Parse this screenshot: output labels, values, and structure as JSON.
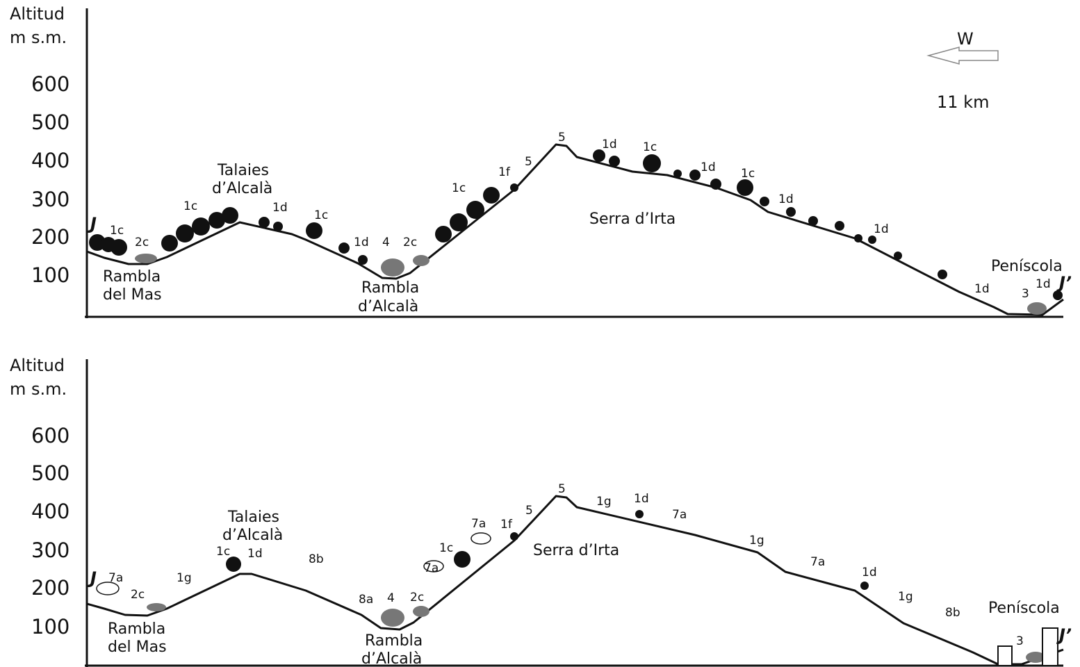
{
  "panels": [
    {
      "id": "top",
      "y_axis_title": [
        "Altitud",
        "m s.m."
      ],
      "y_ticks": [
        "600",
        "500",
        "400",
        "300",
        "200",
        "100"
      ],
      "direction_label": "W",
      "scale_label": "11 km",
      "endpoints": [
        "J",
        "J’"
      ],
      "place_names": [
        {
          "key": "rambla_mas",
          "lines": [
            "Rambla",
            "del Mas"
          ]
        },
        {
          "key": "talaies",
          "lines": [
            "Talaies",
            "d’Alcalà"
          ]
        },
        {
          "key": "rambla_alcala",
          "lines": [
            "Rambla",
            "d’Alcalà"
          ]
        },
        {
          "key": "serra",
          "lines": [
            "Serra d’Irta"
          ]
        },
        {
          "key": "peniscola",
          "lines": [
            "Peníscola"
          ]
        }
      ],
      "vegetation_codes": [
        "1c",
        "2c",
        "1c",
        "1d",
        "1c",
        "1d",
        "4",
        "2c",
        "1c",
        "1f",
        "5",
        "5",
        "1d",
        "1c",
        "1d",
        "1c",
        "1d",
        "1d",
        "1d",
        "3",
        "1d"
      ]
    },
    {
      "id": "bottom",
      "y_axis_title": [
        "Altitud",
        "m s.m."
      ],
      "y_ticks": [
        "600",
        "500",
        "400",
        "300",
        "200",
        "100"
      ],
      "endpoints": [
        "J",
        "J’"
      ],
      "place_names": [
        {
          "key": "rambla_mas",
          "lines": [
            "Rambla",
            "del Mas"
          ]
        },
        {
          "key": "talaies",
          "lines": [
            "Talaies",
            "d’Alcalà"
          ]
        },
        {
          "key": "rambla_alcala",
          "lines": [
            "Rambla",
            "d’Alcalà"
          ]
        },
        {
          "key": "serra",
          "lines": [
            "Serra d’Irta"
          ]
        },
        {
          "key": "peniscola",
          "lines": [
            "Peníscola"
          ]
        }
      ],
      "vegetation_codes": [
        "7a",
        "2c",
        "1g",
        "1c",
        "1d",
        "8b",
        "8a",
        "4",
        "2c",
        "7a",
        "1c",
        "7a",
        "1f",
        "5",
        "5",
        "1g",
        "1d",
        "7a",
        "1g",
        "7a",
        "1d",
        "1g",
        "8b",
        "3"
      ]
    }
  ],
  "colors": {
    "ink": "#111111",
    "background": "#ffffff"
  }
}
